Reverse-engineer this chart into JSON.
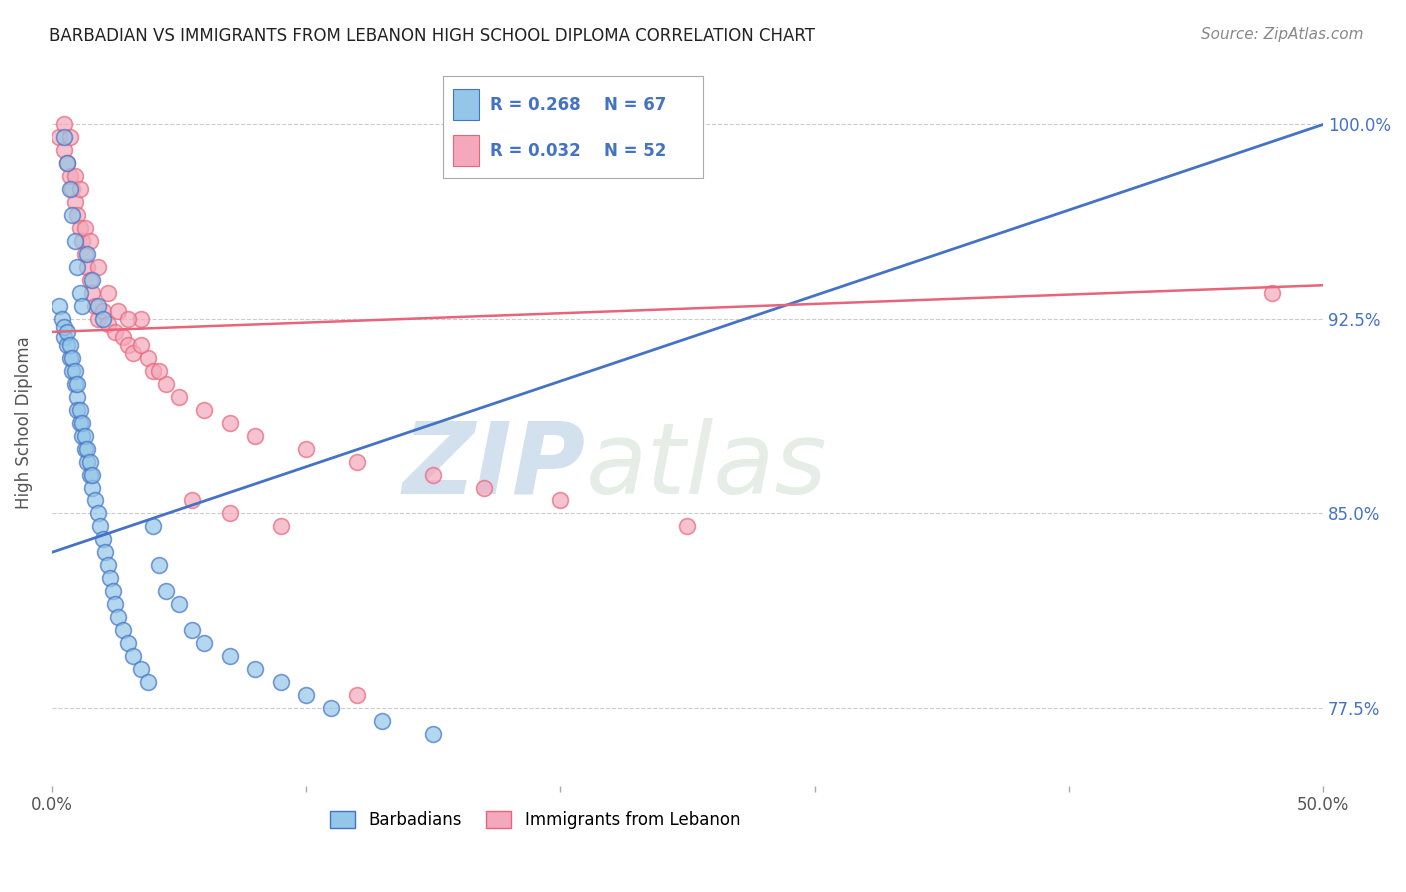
{
  "title": "BARBADIAN VS IMMIGRANTS FROM LEBANON HIGH SCHOOL DIPLOMA CORRELATION CHART",
  "source": "Source: ZipAtlas.com",
  "ylabel": "High School Diploma",
  "ytick_labels": [
    "77.5%",
    "85.0%",
    "92.5%",
    "100.0%"
  ],
  "ytick_values": [
    77.5,
    85.0,
    92.5,
    100.0
  ],
  "xlim": [
    0.0,
    50.0
  ],
  "ylim": [
    74.5,
    102.5
  ],
  "legend_label_blue": "Barbadians",
  "legend_label_pink": "Immigrants from Lebanon",
  "blue_color": "#93C6E8",
  "pink_color": "#F4A8BC",
  "blue_line_color": "#4472C4",
  "pink_line_color": "#E8647A",
  "watermark_zip": "ZIP",
  "watermark_atlas": "atlas",
  "blue_scatter_x": [
    0.3,
    0.4,
    0.5,
    0.5,
    0.6,
    0.6,
    0.7,
    0.7,
    0.8,
    0.8,
    0.9,
    0.9,
    1.0,
    1.0,
    1.0,
    1.1,
    1.1,
    1.2,
    1.2,
    1.3,
    1.3,
    1.4,
    1.4,
    1.5,
    1.5,
    1.6,
    1.6,
    1.7,
    1.8,
    1.9,
    2.0,
    2.1,
    2.2,
    2.3,
    2.4,
    2.5,
    2.6,
    2.8,
    3.0,
    3.2,
    3.5,
    3.8,
    4.0,
    4.2,
    4.5,
    5.0,
    5.5,
    6.0,
    7.0,
    8.0,
    9.0,
    10.0,
    11.0,
    13.0,
    15.0,
    0.5,
    0.6,
    0.7,
    0.8,
    0.9,
    1.0,
    1.1,
    1.2,
    1.4,
    1.6,
    1.8,
    2.0
  ],
  "blue_scatter_y": [
    93.0,
    92.5,
    91.8,
    92.2,
    91.5,
    92.0,
    91.0,
    91.5,
    90.5,
    91.0,
    90.0,
    90.5,
    89.5,
    90.0,
    89.0,
    88.5,
    89.0,
    88.0,
    88.5,
    87.5,
    88.0,
    87.0,
    87.5,
    86.5,
    87.0,
    86.0,
    86.5,
    85.5,
    85.0,
    84.5,
    84.0,
    83.5,
    83.0,
    82.5,
    82.0,
    81.5,
    81.0,
    80.5,
    80.0,
    79.5,
    79.0,
    78.5,
    84.5,
    83.0,
    82.0,
    81.5,
    80.5,
    80.0,
    79.5,
    79.0,
    78.5,
    78.0,
    77.5,
    77.0,
    76.5,
    99.5,
    98.5,
    97.5,
    96.5,
    95.5,
    94.5,
    93.5,
    93.0,
    95.0,
    94.0,
    93.0,
    92.5
  ],
  "pink_scatter_x": [
    0.3,
    0.5,
    0.6,
    0.7,
    0.8,
    0.9,
    1.0,
    1.1,
    1.2,
    1.3,
    1.4,
    1.5,
    1.6,
    1.7,
    1.8,
    2.0,
    2.2,
    2.5,
    2.8,
    3.0,
    3.2,
    3.5,
    3.8,
    4.0,
    4.5,
    5.0,
    6.0,
    7.0,
    8.0,
    10.0,
    12.0,
    15.0,
    17.0,
    20.0,
    25.0,
    48.0,
    0.5,
    0.7,
    0.9,
    1.1,
    1.3,
    1.5,
    1.8,
    2.2,
    2.6,
    3.0,
    3.5,
    4.2,
    5.5,
    7.0,
    9.0,
    12.0
  ],
  "pink_scatter_y": [
    99.5,
    99.0,
    98.5,
    98.0,
    97.5,
    97.0,
    96.5,
    96.0,
    95.5,
    95.0,
    94.5,
    94.0,
    93.5,
    93.0,
    92.5,
    92.8,
    92.3,
    92.0,
    91.8,
    91.5,
    91.2,
    92.5,
    91.0,
    90.5,
    90.0,
    89.5,
    89.0,
    88.5,
    88.0,
    87.5,
    87.0,
    86.5,
    86.0,
    85.5,
    84.5,
    93.5,
    100.0,
    99.5,
    98.0,
    97.5,
    96.0,
    95.5,
    94.5,
    93.5,
    92.8,
    92.5,
    91.5,
    90.5,
    85.5,
    85.0,
    84.5,
    78.0
  ],
  "blue_line_x0": 0.0,
  "blue_line_x1": 50.0,
  "blue_line_y0": 83.5,
  "blue_line_y1": 100.0,
  "pink_line_x0": 0.0,
  "pink_line_x1": 50.0,
  "pink_line_y0": 92.0,
  "pink_line_y1": 93.8,
  "xtick_positions": [
    0,
    10,
    20,
    30,
    40,
    50
  ],
  "xtick_labels": [
    "0.0%",
    "",
    "",
    "",
    "",
    "50.0%"
  ]
}
